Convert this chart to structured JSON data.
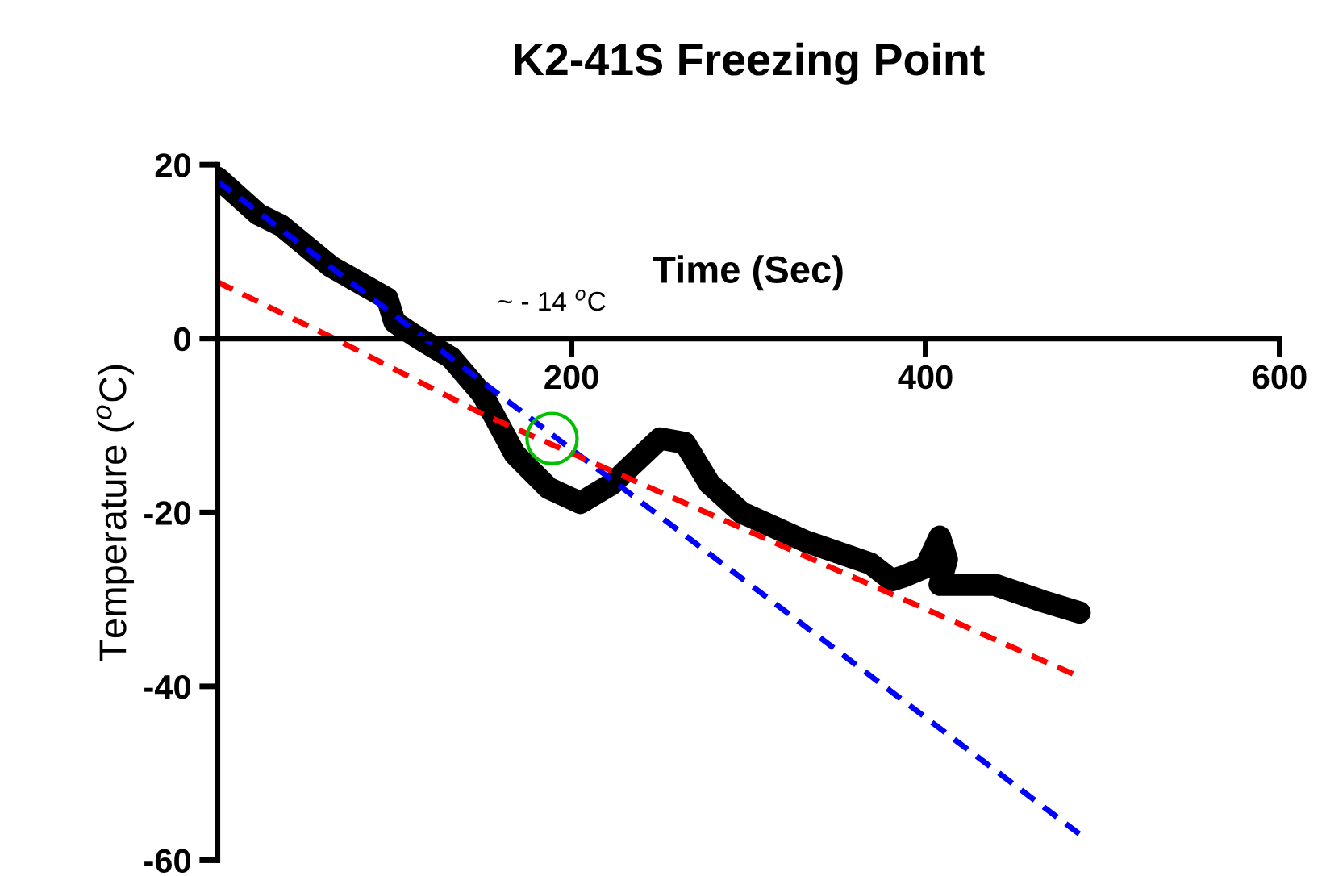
{
  "chart_data": {
    "type": "line",
    "title": "K2-41S Freezing Point",
    "xlabel": "Time (Sec)",
    "ylabel": "Temperature ($^{o}$C)",
    "xlim": [
      0,
      600
    ],
    "xticks": [
      200,
      400,
      600
    ],
    "ylim": [
      -60,
      20
    ],
    "yticks": [
      -60,
      -40,
      -20,
      0,
      20
    ],
    "grid": false,
    "legend": false,
    "series": [
      {
        "color": "#000000",
        "line_style": "solid",
        "x": [
          0,
          23,
          36,
          64,
          96,
          100,
          114,
          132,
          150,
          168,
          187,
          205,
          223,
          250,
          264,
          278,
          296,
          332,
          369,
          381,
          387,
          400,
          408,
          412,
          408,
          439,
          466,
          487
        ],
        "values": [
          18.5,
          14.3,
          13,
          8.3,
          4.6,
          1.9,
          0,
          -2.2,
          -6.5,
          -13.3,
          -17.2,
          -18.9,
          -16.7,
          -11.5,
          -12,
          -16.7,
          -20,
          -23.3,
          -25.9,
          -27.8,
          -27.4,
          -26.3,
          -22.8,
          -25.4,
          -28.3,
          -28.3,
          -30.2,
          -31.5
        ]
      },
      {
        "color": "#0000ff",
        "line_style": "dashed",
        "x": [
          0,
          487
        ],
        "values": [
          18.1,
          -57
        ]
      },
      {
        "color": "#ff0000",
        "line_style": "dashed",
        "x": [
          0,
          66,
          150,
          487
        ],
        "values": [
          6.5,
          0,
          -8.7,
          -38.9
        ]
      },
      {
        "type": "scatter",
        "marker": "circle",
        "color": "#00c000",
        "x": [
          189
        ],
        "values": [
          -11.5
        ]
      }
    ],
    "annotations": [
      "~ - 14 $^{o}$C"
    ]
  }
}
